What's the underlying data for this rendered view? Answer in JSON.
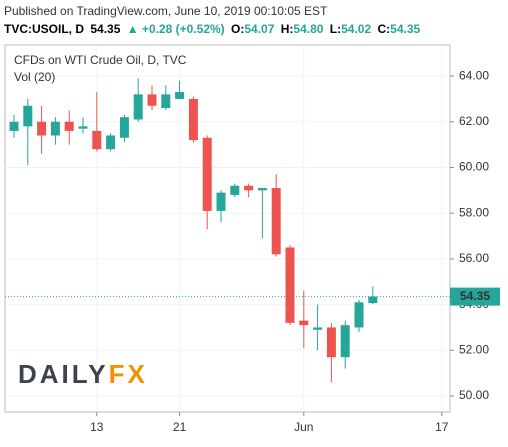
{
  "header": {
    "published": "Published on TradingView.com, June 10, 2019 00:10:05 EST",
    "symbol": "TVC:USOIL, D",
    "last": "54.35",
    "change": "▲ +0.28 (+0.52%)",
    "ohlc": [
      {
        "label": "O:",
        "value": "54.07"
      },
      {
        "label": "H:",
        "value": "54.80"
      },
      {
        "label": "L:",
        "value": "54.02"
      },
      {
        "label": "C:",
        "value": "54.35"
      }
    ]
  },
  "chart_data": {
    "type": "candlestick",
    "title": "CFDs on WTI Crude Oil, D, TVC",
    "subtitle": "Vol (20)",
    "watermark": [
      "DAILY",
      "FX"
    ],
    "categories": [
      null,
      null,
      null,
      null,
      null,
      null,
      "13",
      null,
      null,
      null,
      null,
      null,
      "21",
      null,
      null,
      null,
      null,
      null,
      null,
      null,
      null,
      "Jun",
      null,
      null,
      null,
      null,
      null,
      null,
      null,
      null,
      null,
      "17"
    ],
    "open": [
      61.6,
      61.8,
      62.0,
      61.4,
      62.0,
      61.7,
      61.6,
      60.8,
      61.3,
      62.1,
      63.2,
      62.6,
      63.0,
      63.0,
      61.3,
      58.1,
      58.8,
      59.2,
      59.0,
      59.1,
      56.5,
      53.3,
      52.9,
      53.0,
      51.7,
      53.0,
      54.07,
      null,
      null,
      null,
      null,
      null
    ],
    "high": [
      62.3,
      63.0,
      62.7,
      62.2,
      62.5,
      62.2,
      63.3,
      61.5,
      62.3,
      63.9,
      63.6,
      63.6,
      63.8,
      63.1,
      61.4,
      59.0,
      59.3,
      59.3,
      59.1,
      59.7,
      56.6,
      54.6,
      54.0,
      53.2,
      53.3,
      54.2,
      54.8,
      null,
      null,
      null,
      null,
      null
    ],
    "low": [
      61.3,
      60.1,
      60.6,
      61.0,
      61.0,
      61.5,
      60.7,
      60.7,
      61.1,
      62.0,
      62.5,
      62.5,
      63.0,
      61.1,
      57.3,
      57.6,
      58.7,
      58.7,
      56.9,
      56.1,
      53.1,
      52.1,
      52.0,
      50.6,
      51.2,
      52.8,
      54.02,
      null,
      null,
      null,
      null,
      null
    ],
    "close": [
      62.0,
      62.7,
      61.4,
      62.0,
      61.6,
      61.8,
      60.8,
      61.4,
      62.2,
      63.2,
      62.7,
      63.2,
      63.3,
      61.2,
      58.1,
      58.9,
      59.2,
      59.0,
      59.1,
      56.2,
      53.2,
      53.1,
      53.0,
      51.7,
      53.1,
      54.1,
      54.35,
      null,
      null,
      null,
      null,
      null
    ],
    "up_color": "#26a69a",
    "down_color": "#ef5350",
    "price_line": 54.35,
    "ylim": [
      49.3,
      65.36
    ],
    "yticks": [
      {
        "value": 50,
        "label": "50.00"
      },
      {
        "value": 52,
        "label": "52.00"
      },
      {
        "value": 54,
        "label": "54.00"
      },
      {
        "value": 56,
        "label": "56.00"
      },
      {
        "value": 58,
        "label": "58.00"
      },
      {
        "value": 60,
        "label": "60.00"
      },
      {
        "value": 62,
        "label": "62.00"
      },
      {
        "value": 64,
        "label": "64.00"
      }
    ],
    "grid": true
  }
}
